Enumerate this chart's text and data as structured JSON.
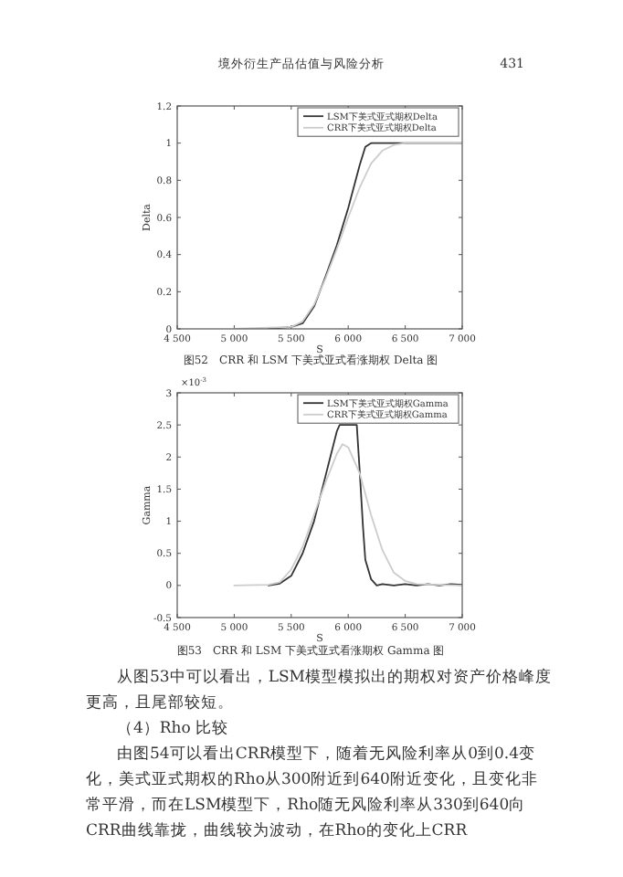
{
  "chart_data": [
    {
      "type": "line",
      "title": "图52　CRR 和 LSM 下美式亚式看涨期权 Delta 图",
      "xlabel": "S",
      "ylabel": "Delta",
      "legend": "top right",
      "grid": false,
      "annotations": [
        "境外衍生产品估值与风险分析",
        "431"
      ],
      "xlim": [
        4500,
        7000
      ],
      "xticks": [
        {
          "value": 4500,
          "label": "4 500"
        },
        {
          "value": 5000,
          "label": "5 000"
        },
        {
          "value": 5500,
          "label": "5 500"
        },
        {
          "value": 6000,
          "label": "6 000"
        },
        {
          "value": 6500,
          "label": "6 500"
        },
        {
          "value": 7000,
          "label": "7 000"
        }
      ],
      "ylim": [
        0,
        1.2
      ],
      "yticks": [
        0,
        0.2,
        0.4,
        0.6,
        0.8,
        1,
        1.2
      ],
      "series": [
        {
          "name": "LSM下美式亚式期权Delta",
          "color": "#333333",
          "x": [
            5300,
            5500,
            5600,
            5700,
            5800,
            5900,
            6000,
            6100,
            6150,
            6200,
            6500,
            7000
          ],
          "values": [
            0,
            0.01,
            0.03,
            0.12,
            0.28,
            0.45,
            0.65,
            0.88,
            0.98,
            1,
            1,
            1
          ]
        },
        {
          "name": "CRR下美式亚式期权Delta",
          "color": "#cccccc",
          "x": [
            5000,
            5500,
            5600,
            5700,
            5800,
            5900,
            6000,
            6100,
            6200,
            6300,
            6400,
            6500,
            7000
          ],
          "values": [
            0,
            0.01,
            0.04,
            0.13,
            0.27,
            0.43,
            0.6,
            0.76,
            0.89,
            0.96,
            0.99,
            1,
            1
          ]
        }
      ]
    },
    {
      "type": "line",
      "title": "图53　CRR 和 LSM 下美式亚式看涨期权 Gamma 图",
      "xlabel": "S",
      "ylabel": "Gamma",
      "legend": "top right",
      "grid": false,
      "annotations": [
        "×10$^{-3}$",
        "从图53中可以看出，LSM模型模拟出的期权对资产价格峰度更高，且尾部较短。",
        "（4）Rho 比较",
        "由图54可以看出CRR模型下，随着无风险利率从0到0.4变化，美式亚式期权的Rho从300附近到640附近变化，且变化非常平滑，而在LSM模型下，Rho随无风险利率从330到640向CRR曲线靠拢，曲线较为波动，在Rho的变化上CRR"
      ],
      "xlim": [
        4500,
        7000
      ],
      "xticks": [
        {
          "value": 4500,
          "label": "4 500"
        },
        {
          "value": 5000,
          "label": "5 000"
        },
        {
          "value": 5500,
          "label": "5 500"
        },
        {
          "value": 6000,
          "label": "6 000"
        },
        {
          "value": 6500,
          "label": "6 500"
        },
        {
          "value": 7000,
          "label": "7 000"
        }
      ],
      "ylim": [
        -0.5,
        3
      ],
      "yticks": [
        -0.5,
        0,
        0.5,
        1,
        1.5,
        2,
        2.5,
        3
      ],
      "series": [
        {
          "name": "LSM下美式亚式期权Gamma",
          "color": "#333333",
          "x": [
            5300,
            5400,
            5500,
            5600,
            5700,
            5800,
            5900,
            5925,
            6075,
            6100,
            6130,
            6150,
            6200,
            6250,
            6300,
            6400,
            6500,
            6600,
            6700,
            6800,
            6900,
            7000
          ],
          "values": [
            0,
            0.03,
            0.15,
            0.5,
            1,
            1.7,
            2.4,
            2.5,
            2.5,
            1.8,
            0.9,
            0.4,
            0.1,
            0,
            0.02,
            0,
            0.02,
            0,
            0.02,
            0,
            0.02,
            0.01
          ]
        },
        {
          "name": "CRR下美式亚式期权Gamma",
          "color": "#cccccc",
          "x": [
            5000,
            5300,
            5400,
            5500,
            5600,
            5700,
            5800,
            5900,
            5950,
            6000,
            6100,
            6200,
            6300,
            6400,
            6500,
            6600,
            7000
          ],
          "values": [
            0,
            0.01,
            0.05,
            0.25,
            0.6,
            1.1,
            1.6,
            2.05,
            2.2,
            2.15,
            1.75,
            1.1,
            0.55,
            0.2,
            0.07,
            0.02,
            0
          ]
        }
      ]
    }
  ]
}
